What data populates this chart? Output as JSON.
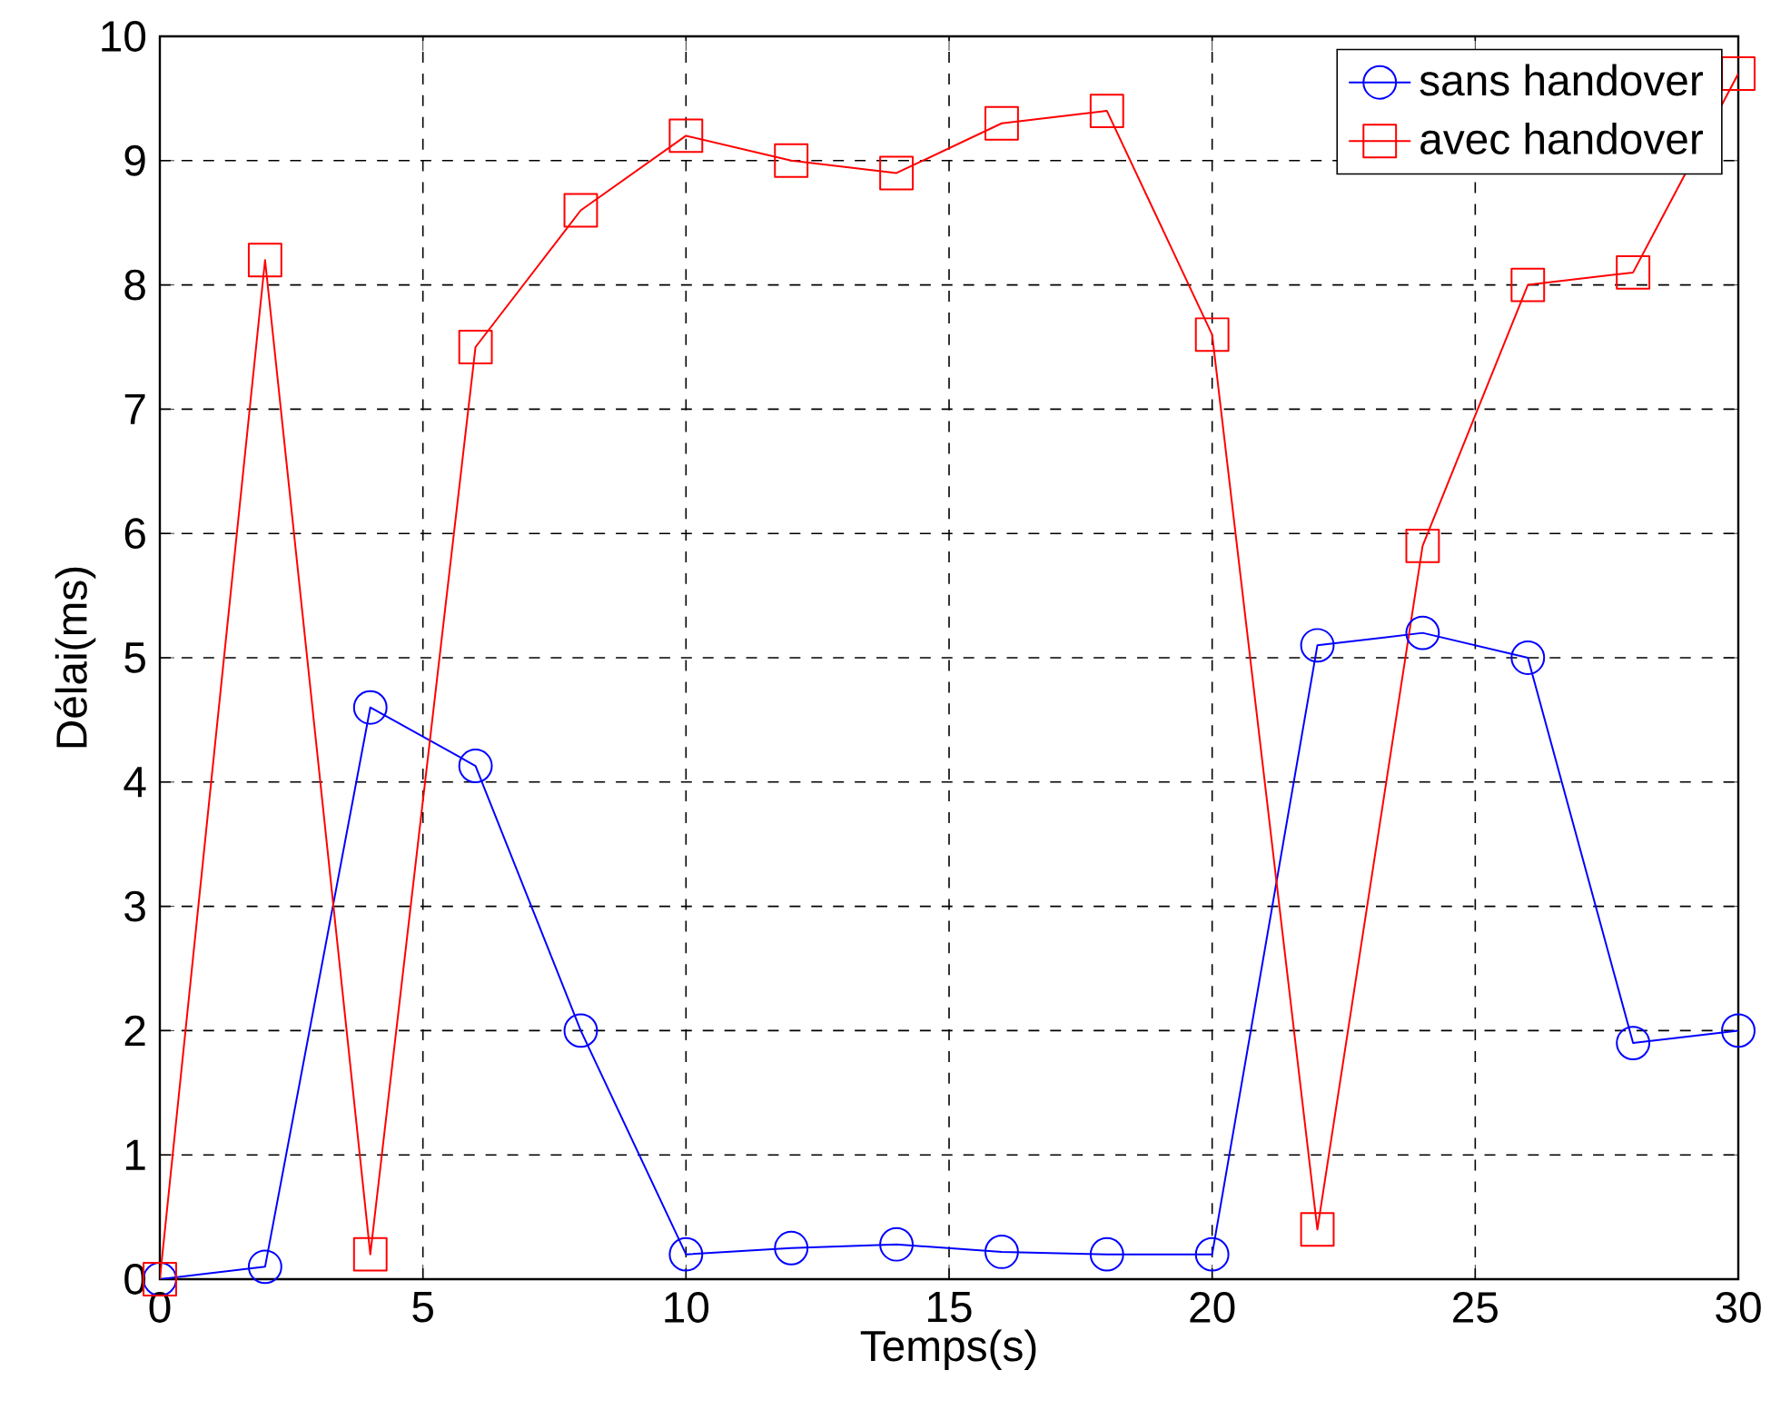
{
  "chart_data": {
    "type": "line",
    "xlabel": "Temps(s)",
    "ylabel": "Délai(ms)",
    "x": [
      0,
      2,
      4,
      6,
      8,
      10,
      12,
      14,
      16,
      18,
      20,
      22,
      24,
      26,
      28,
      30
    ],
    "series": [
      {
        "name": "sans handover",
        "color": "#0000ff",
        "marker": "circle",
        "values": [
          0,
          0.1,
          4.6,
          4.13,
          2.0,
          0.2,
          0.25,
          0.28,
          0.22,
          0.2,
          0.2,
          5.1,
          5.2,
          5.0,
          1.9,
          2.0
        ]
      },
      {
        "name": "avec handover",
        "color": "#ff0000",
        "marker": "square",
        "values": [
          0,
          8.2,
          0.2,
          7.5,
          8.6,
          9.2,
          9.0,
          8.9,
          9.3,
          9.4,
          7.6,
          0.4,
          5.9,
          8.0,
          8.1,
          9.7
        ]
      }
    ],
    "xlim": [
      0,
      30
    ],
    "ylim": [
      0,
      10
    ],
    "xticks": [
      0,
      5,
      10,
      15,
      20,
      25,
      30
    ],
    "yticks": [
      0,
      1,
      2,
      3,
      4,
      5,
      6,
      7,
      8,
      9,
      10
    ],
    "grid": true,
    "legend": "top right",
    "line_style": "solid"
  }
}
